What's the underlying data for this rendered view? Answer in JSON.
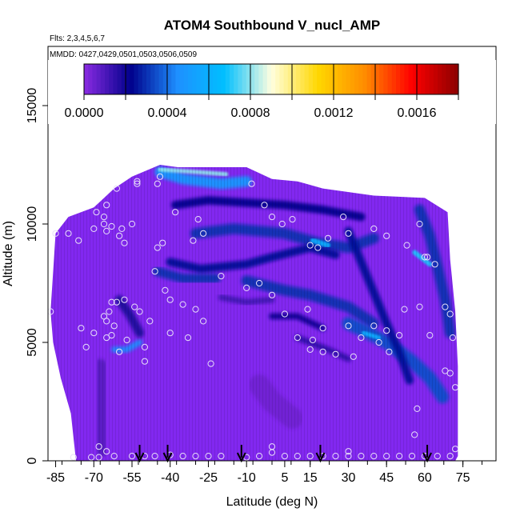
{
  "chart_data": {
    "type": "heatmap",
    "title": "ATOM4 Southbound V_nucl_AMP",
    "flights_label": "Flts: 2,3,4,5,6,7",
    "dates_label": "MMDD: 0427,0429,0501,0503,0506,0509",
    "xlabel": "Latitude (deg N)",
    "ylabel": "Altitude (m)",
    "xlim": [
      -88,
      88
    ],
    "ylim": [
      0,
      17500
    ],
    "x_ticks": [
      -85,
      -70,
      -55,
      -40,
      -25,
      -10,
      5,
      15,
      30,
      45,
      60,
      75
    ],
    "x_tick_labels": [
      "-85",
      "-70",
      "-55",
      "-40",
      "-25",
      "-10",
      "5",
      "15",
      "30",
      "45",
      "60",
      "75"
    ],
    "y_ticks": [
      0,
      5000,
      10000,
      15000
    ],
    "y_tick_labels": [
      "0",
      "5000",
      "10000",
      "15000"
    ],
    "colorbar": {
      "min": 0,
      "max": 0.0018,
      "tick_values": [
        0,
        0.0004,
        0.0008,
        0.0012,
        0.0016
      ],
      "tick_labels": [
        "0.0000",
        "0.0004",
        "0.0008",
        "0.0012",
        "0.0016"
      ],
      "colors": [
        "#8a2be2",
        "#00008b",
        "#1e90ff",
        "#00bfff",
        "#ffffe0",
        "#ffd700",
        "#ff8c00",
        "#ff0000",
        "#8b0000"
      ]
    },
    "background_color": "#8228f0",
    "extent": [
      [
        -87,
        6300
      ],
      [
        -85,
        9600
      ],
      [
        -80,
        10300
      ],
      [
        -70,
        10700
      ],
      [
        -62,
        11500
      ],
      [
        -55,
        12000
      ],
      [
        -44,
        12500
      ],
      [
        -37,
        12400
      ],
      [
        -10,
        12400
      ],
      [
        0,
        11900
      ],
      [
        10,
        11800
      ],
      [
        20,
        11500
      ],
      [
        40,
        11200
      ],
      [
        60,
        11100
      ],
      [
        69,
        10500
      ],
      [
        70,
        8500
      ],
      [
        72,
        6300
      ],
      [
        73,
        4000
      ],
      [
        73,
        200
      ],
      [
        72,
        0
      ],
      [
        -77,
        0
      ],
      [
        -79,
        2000
      ],
      [
        -83,
        3500
      ],
      [
        -86,
        5000
      ]
    ],
    "features": [
      {
        "kind": "band",
        "points": [
          [
            -44,
            12200
          ],
          [
            -35,
            11900
          ],
          [
            -20,
            11700
          ],
          [
            -10,
            11800
          ]
        ],
        "thickness": 450,
        "value": 0.0005
      },
      {
        "kind": "band",
        "points": [
          [
            -44,
            12300
          ],
          [
            -30,
            12200
          ],
          [
            -18,
            12100
          ]
        ],
        "thickness": 180,
        "value": 0.0008
      },
      {
        "kind": "band",
        "points": [
          [
            -38,
            10800
          ],
          [
            -25,
            11000
          ],
          [
            -10,
            10900
          ],
          [
            5,
            10800
          ],
          [
            20,
            10600
          ],
          [
            35,
            10300
          ]
        ],
        "thickness": 350,
        "value": 0.00022
      },
      {
        "kind": "band",
        "points": [
          [
            -30,
            9600
          ],
          [
            -15,
            9800
          ],
          [
            5,
            9600
          ],
          [
            18,
            9200
          ],
          [
            30,
            9000
          ],
          [
            40,
            9400
          ]
        ],
        "thickness": 450,
        "value": 0.0003
      },
      {
        "kind": "band",
        "points": [
          [
            -40,
            8400
          ],
          [
            -28,
            8100
          ],
          [
            -10,
            8300
          ],
          [
            0,
            8600
          ],
          [
            15,
            9000
          ],
          [
            25,
            8700
          ]
        ],
        "thickness": 350,
        "value": 0.00025
      },
      {
        "kind": "band",
        "points": [
          [
            -45,
            8000
          ],
          [
            -35,
            7700
          ],
          [
            -22,
            7700
          ]
        ],
        "thickness": 400,
        "value": 0.0003
      },
      {
        "kind": "band",
        "points": [
          [
            -10,
            7600
          ],
          [
            5,
            7200
          ],
          [
            15,
            7000
          ],
          [
            30,
            6500
          ],
          [
            40,
            5800
          ]
        ],
        "thickness": 450,
        "value": 0.0003
      },
      {
        "kind": "band",
        "points": [
          [
            30,
            5800
          ],
          [
            38,
            5400
          ],
          [
            45,
            5000
          ],
          [
            55,
            4200
          ],
          [
            62,
            3500
          ],
          [
            67,
            2700
          ]
        ],
        "thickness": 550,
        "value": 0.00035
      },
      {
        "kind": "band",
        "points": [
          [
            30,
            9700
          ],
          [
            35,
            8400
          ],
          [
            40,
            7100
          ],
          [
            45,
            5800
          ],
          [
            50,
            4600
          ],
          [
            54,
            3400
          ]
        ],
        "thickness": 350,
        "value": 0.00025
      },
      {
        "kind": "band",
        "points": [
          [
            58,
            10600
          ],
          [
            62,
            9500
          ],
          [
            65,
            8200
          ],
          [
            68,
            6800
          ],
          [
            70,
            5400
          ]
        ],
        "thickness": 450,
        "value": 0.0003
      },
      {
        "kind": "band",
        "points": [
          [
            56,
            8800
          ],
          [
            62,
            8300
          ]
        ],
        "thickness": 200,
        "value": 0.0007
      },
      {
        "kind": "band",
        "points": [
          [
            -62,
            4700
          ],
          [
            -57,
            4700
          ],
          [
            -52,
            5000
          ]
        ],
        "thickness": 250,
        "value": 0.00045
      },
      {
        "kind": "band",
        "points": [
          [
            -60,
            6800
          ],
          [
            -56,
            6200
          ],
          [
            -52,
            5400
          ]
        ],
        "thickness": 380,
        "value": 0.00018
      },
      {
        "kind": "band",
        "points": [
          [
            0,
            6100
          ],
          [
            10,
            6100
          ],
          [
            20,
            5600
          ]
        ],
        "thickness": 260,
        "value": 0.0002
      },
      {
        "kind": "band",
        "points": [
          [
            10,
            5200
          ],
          [
            22,
            4700
          ],
          [
            30,
            4300
          ]
        ],
        "thickness": 250,
        "value": 0.00015
      },
      {
        "kind": "band",
        "points": [
          [
            -20,
            6900
          ],
          [
            -10,
            6700
          ],
          [
            0,
            6800
          ]
        ],
        "thickness": 250,
        "value": 0.00012
      },
      {
        "kind": "band",
        "points": [
          [
            36,
            5400
          ],
          [
            42,
            5200
          ]
        ],
        "thickness": 180,
        "value": 0.0006
      },
      {
        "kind": "band",
        "points": [
          [
            16,
            9300
          ],
          [
            22,
            9100
          ]
        ],
        "thickness": 220,
        "value": 0.0006
      },
      {
        "kind": "band",
        "points": [
          [
            -68,
            3800
          ],
          [
            -68,
            2000
          ],
          [
            -66,
            700
          ]
        ],
        "thickness": 1000,
        "value": 8e-05
      },
      {
        "kind": "band",
        "points": [
          [
            -5,
            3200
          ],
          [
            0,
            2500
          ],
          [
            8,
            1800
          ]
        ],
        "thickness": 900,
        "value": 4e-05
      }
    ],
    "sample_points": [
      [
        -87,
        6300
      ],
      [
        -85,
        9600
      ],
      [
        -80,
        9600
      ],
      [
        -75,
        5600
      ],
      [
        -73,
        4800
      ],
      [
        -76,
        9300
      ],
      [
        -70,
        9800
      ],
      [
        -69,
        10500
      ],
      [
        -65,
        10800
      ],
      [
        -61,
        11500
      ],
      [
        -66,
        10300
      ],
      [
        -66,
        10000
      ],
      [
        -65,
        9700
      ],
      [
        -63,
        9900
      ],
      [
        -59,
        9800
      ],
      [
        -60,
        9500
      ],
      [
        -58,
        9200
      ],
      [
        -55,
        10000
      ],
      [
        -53,
        11700
      ],
      [
        -44,
        12000
      ],
      [
        -45,
        11700
      ],
      [
        -43,
        9200
      ],
      [
        -45,
        9000
      ],
      [
        -38,
        10500
      ],
      [
        -29,
        10200
      ],
      [
        -27,
        9600
      ],
      [
        -31,
        9300
      ],
      [
        -46,
        8000
      ],
      [
        -42,
        7200
      ],
      [
        -40,
        6800
      ],
      [
        -35,
        6600
      ],
      [
        -30,
        6400
      ],
      [
        -27,
        5900
      ],
      [
        -33,
        5200
      ],
      [
        -40,
        5400
      ],
      [
        -48,
        5900
      ],
      [
        -52,
        6300
      ],
      [
        -54,
        6500
      ],
      [
        -58,
        6800
      ],
      [
        -61,
        6700
      ],
      [
        -63,
        6700
      ],
      [
        -64,
        6300
      ],
      [
        -66,
        6100
      ],
      [
        -65,
        5900
      ],
      [
        -62,
        5700
      ],
      [
        -63,
        5300
      ],
      [
        -65,
        5200
      ],
      [
        -70,
        5400
      ],
      [
        -57,
        5100
      ],
      [
        -60,
        4600
      ],
      [
        -50,
        4800
      ],
      [
        -50,
        4200
      ],
      [
        -20,
        7800
      ],
      [
        -24,
        4100
      ],
      [
        -8,
        11700
      ],
      [
        -3,
        10800
      ],
      [
        0,
        10300
      ],
      [
        4,
        10000
      ],
      [
        8,
        10200
      ],
      [
        15,
        9100
      ],
      [
        18,
        9000
      ],
      [
        22,
        9400
      ],
      [
        28,
        10300
      ],
      [
        30,
        9600
      ],
      [
        40,
        9800
      ],
      [
        45,
        9500
      ],
      [
        53,
        9100
      ],
      [
        58,
        10000
      ],
      [
        60,
        8600
      ],
      [
        61,
        8600
      ],
      [
        64,
        8300
      ],
      [
        68,
        6500
      ],
      [
        70,
        6200
      ],
      [
        -10,
        7300
      ],
      [
        -5,
        7500
      ],
      [
        0,
        7000
      ],
      [
        5,
        6200
      ],
      [
        10,
        5200
      ],
      [
        14,
        6400
      ],
      [
        16,
        5100
      ],
      [
        20,
        5600
      ],
      [
        30,
        5700
      ],
      [
        35,
        5200
      ],
      [
        40,
        5700
      ],
      [
        45,
        5500
      ],
      [
        52,
        6400
      ],
      [
        58,
        6500
      ],
      [
        62,
        5300
      ],
      [
        68,
        3800
      ],
      [
        70,
        3700
      ],
      [
        72,
        3100
      ],
      [
        71,
        5200
      ],
      [
        15,
        4700
      ],
      [
        20,
        4600
      ],
      [
        25,
        4500
      ],
      [
        32,
        4400
      ],
      [
        42,
        5000
      ],
      [
        46,
        4600
      ],
      [
        50,
        5300
      ],
      [
        57,
        2200
      ],
      [
        56,
        1100
      ],
      [
        -78,
        150
      ],
      [
        -71,
        150
      ],
      [
        -68,
        150
      ],
      [
        -65,
        400
      ],
      [
        -62,
        200
      ],
      [
        -55,
        200
      ],
      [
        -50,
        200
      ],
      [
        -46,
        200
      ],
      [
        -40,
        250
      ],
      [
        -35,
        200
      ],
      [
        -30,
        200
      ],
      [
        -25,
        200
      ],
      [
        -20,
        200
      ],
      [
        -10,
        150
      ],
      [
        -5,
        200
      ],
      [
        0,
        350
      ],
      [
        0,
        600
      ],
      [
        5,
        200
      ],
      [
        10,
        200
      ],
      [
        15,
        200
      ],
      [
        20,
        200
      ],
      [
        25,
        200
      ],
      [
        30,
        200
      ],
      [
        30,
        400
      ],
      [
        35,
        200
      ],
      [
        40,
        200
      ],
      [
        45,
        200
      ],
      [
        50,
        200
      ],
      [
        55,
        200
      ],
      [
        60,
        200
      ],
      [
        65,
        200
      ],
      [
        70,
        200
      ],
      [
        72,
        500
      ],
      [
        -68,
        600
      ],
      [
        -53,
        11800
      ]
    ],
    "flight_arrows": [
      -52,
      -41,
      -12,
      19,
      61
    ]
  }
}
